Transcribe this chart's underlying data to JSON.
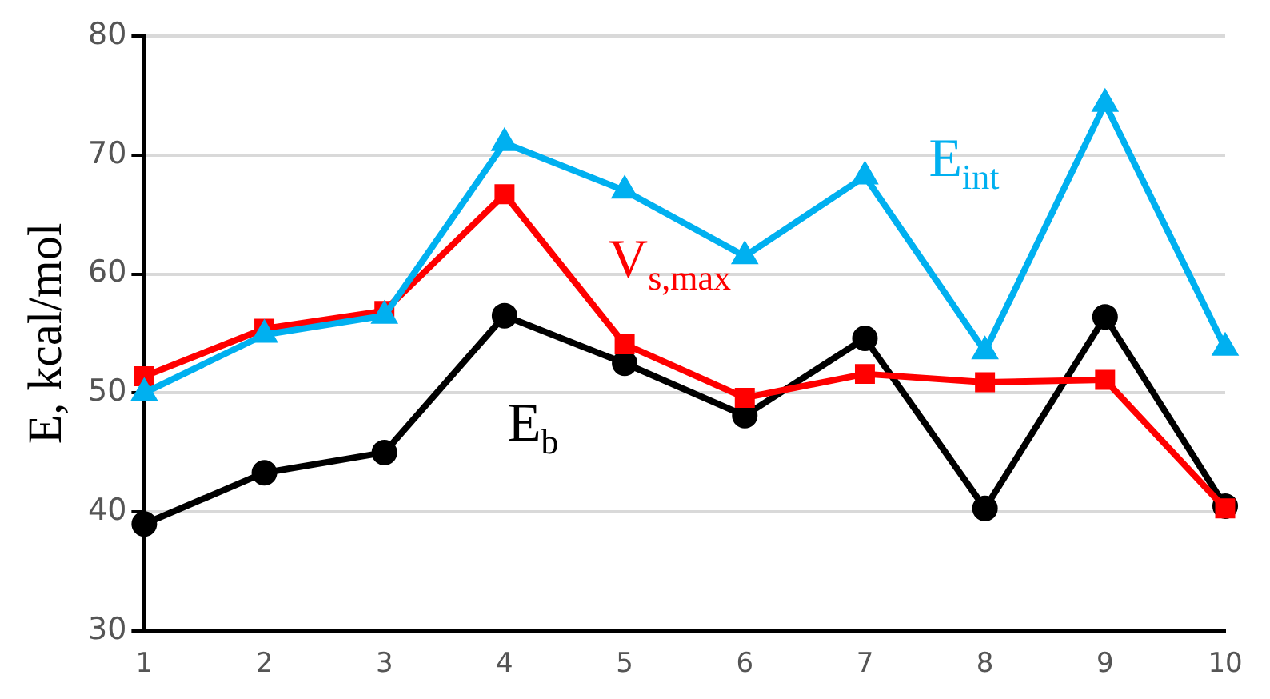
{
  "chart_data": {
    "type": "line",
    "ylabel": "E, kcal/mol",
    "categories": [
      "1",
      "2",
      "3",
      "4",
      "5",
      "6",
      "7",
      "8",
      "9",
      "10"
    ],
    "series": [
      {
        "name": "E$_{int}$",
        "color": "#00b0f0",
        "marker": "triangle",
        "values": [
          50.0,
          54.9,
          56.5,
          71.0,
          67.0,
          61.5,
          68.2,
          53.5,
          74.3,
          53.8
        ]
      },
      {
        "name": "V$_{s,max}$",
        "color": "#ff0000",
        "marker": "square",
        "values": [
          51.4,
          55.4,
          56.9,
          66.7,
          54.1,
          49.6,
          51.6,
          50.9,
          51.1,
          40.3
        ]
      },
      {
        "name": "E$_{b}$",
        "color": "#000000",
        "marker": "circle",
        "values": [
          39.0,
          43.3,
          45.0,
          56.5,
          52.5,
          48.1,
          54.6,
          40.3,
          56.4,
          40.5
        ]
      }
    ],
    "ylim": [
      30,
      80
    ],
    "yticks": [
      30,
      40,
      50,
      60,
      70,
      80
    ],
    "grid": "y",
    "legend": false,
    "line_style": "solid"
  }
}
